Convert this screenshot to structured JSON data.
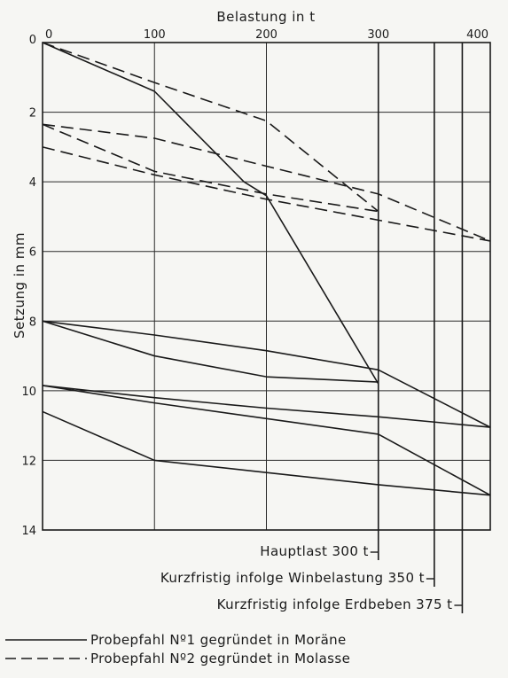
{
  "chart_data": {
    "type": "line",
    "title": "",
    "xlabel": "Belastung in t",
    "ylabel": "Setzung in mm",
    "xlim": [
      0,
      400
    ],
    "ylim": [
      0,
      14
    ],
    "y_inverted": true,
    "x_ticks": [
      "0",
      "100",
      "200",
      "300",
      "400"
    ],
    "y_ticks": [
      "0",
      "2",
      "4",
      "6",
      "8",
      "10",
      "12",
      "14"
    ],
    "grid": true,
    "legend_position": "bottom-left",
    "legend": [
      {
        "label": "Probepfahl Nº1 gegründet in Moräne",
        "style": "solid"
      },
      {
        "label": "Probepfahl Nº2 gegründet in Molasse",
        "style": "dashed"
      }
    ],
    "reference_lines": [
      {
        "x": 300,
        "label": "Hauptlast 300 t"
      },
      {
        "x": 350,
        "label": "Kurzfristig infolge Winbelastung 350 t"
      },
      {
        "x": 375,
        "label": "Kurzfristig infolge Erdbeben 375 t"
      }
    ],
    "series": [
      {
        "style": "solid",
        "x": [
          0,
          100,
          180,
          200,
          300
        ],
        "y": [
          0,
          1.4,
          4.0,
          4.4,
          9.8
        ]
      },
      {
        "style": "solid",
        "x": [
          0,
          100,
          200,
          300
        ],
        "y": [
          8.0,
          9.0,
          9.6,
          9.75
        ]
      },
      {
        "style": "solid",
        "x": [
          0,
          100,
          200,
          300,
          400
        ],
        "y": [
          8.0,
          8.4,
          8.85,
          9.4,
          11.05
        ]
      },
      {
        "style": "solid",
        "x": [
          0,
          100,
          200,
          300,
          400
        ],
        "y": [
          9.85,
          10.2,
          10.5,
          10.75,
          11.05
        ]
      },
      {
        "style": "solid",
        "x": [
          0,
          100,
          200,
          300,
          400
        ],
        "y": [
          9.85,
          10.35,
          10.8,
          11.25,
          13.0
        ]
      },
      {
        "style": "solid",
        "x": [
          0,
          100,
          200,
          300,
          400
        ],
        "y": [
          10.6,
          12.0,
          12.35,
          12.7,
          13.0
        ]
      },
      {
        "style": "dashed",
        "x": [
          0,
          100,
          200,
          300
        ],
        "y": [
          0,
          1.15,
          2.25,
          4.85
        ]
      },
      {
        "style": "dashed",
        "x": [
          0,
          100,
          200,
          300
        ],
        "y": [
          2.35,
          3.7,
          4.35,
          4.85
        ]
      },
      {
        "style": "dashed",
        "x": [
          0,
          100,
          200,
          300,
          400
        ],
        "y": [
          2.35,
          2.75,
          3.55,
          4.35,
          5.7
        ]
      },
      {
        "style": "dashed",
        "x": [
          0,
          100,
          200,
          300,
          400
        ],
        "y": [
          3.0,
          3.8,
          4.5,
          5.1,
          5.7
        ]
      }
    ]
  }
}
